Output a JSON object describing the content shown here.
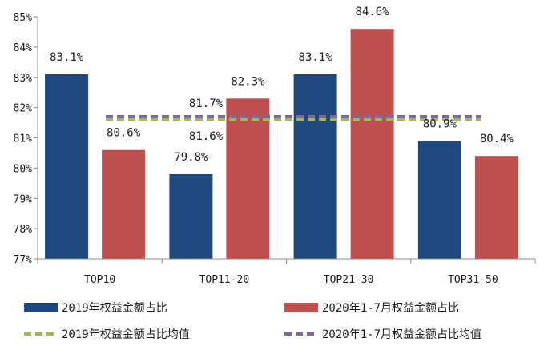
{
  "chart_data": {
    "type": "bar",
    "title": "",
    "xlabel": "",
    "ylabel": "",
    "categories": [
      "TOP10",
      "TOP11-20",
      "TOP21-30",
      "TOP31-50"
    ],
    "ylim": [
      77,
      85
    ],
    "yticks": [
      "77%",
      "78%",
      "79%",
      "80%",
      "81%",
      "82%",
      "83%",
      "84%",
      "85%"
    ],
    "grid": false,
    "legend_position": "bottom",
    "series": [
      {
        "name": "2019年权益金额占比",
        "color": "#1f497d",
        "values": [
          83.1,
          79.8,
          83.1,
          80.9
        ],
        "labels": [
          "83.1%",
          "79.8%",
          "83.1%",
          "80.9%"
        ]
      },
      {
        "name": "2020年1-7月权益金额占比",
        "color": "#c0504d",
        "values": [
          80.6,
          82.3,
          84.6,
          80.4
        ],
        "labels": [
          "80.6%",
          "82.3%",
          "84.6%",
          "80.4%"
        ]
      }
    ],
    "average_lines": [
      {
        "name": "2019年权益金额占比均值",
        "color": "#9bbb59",
        "value": 81.6,
        "label": "81.6%"
      },
      {
        "name": "2020年1-7月权益金额占比均值",
        "color": "#8064a2",
        "value": 81.7,
        "label": "81.7%"
      }
    ]
  }
}
